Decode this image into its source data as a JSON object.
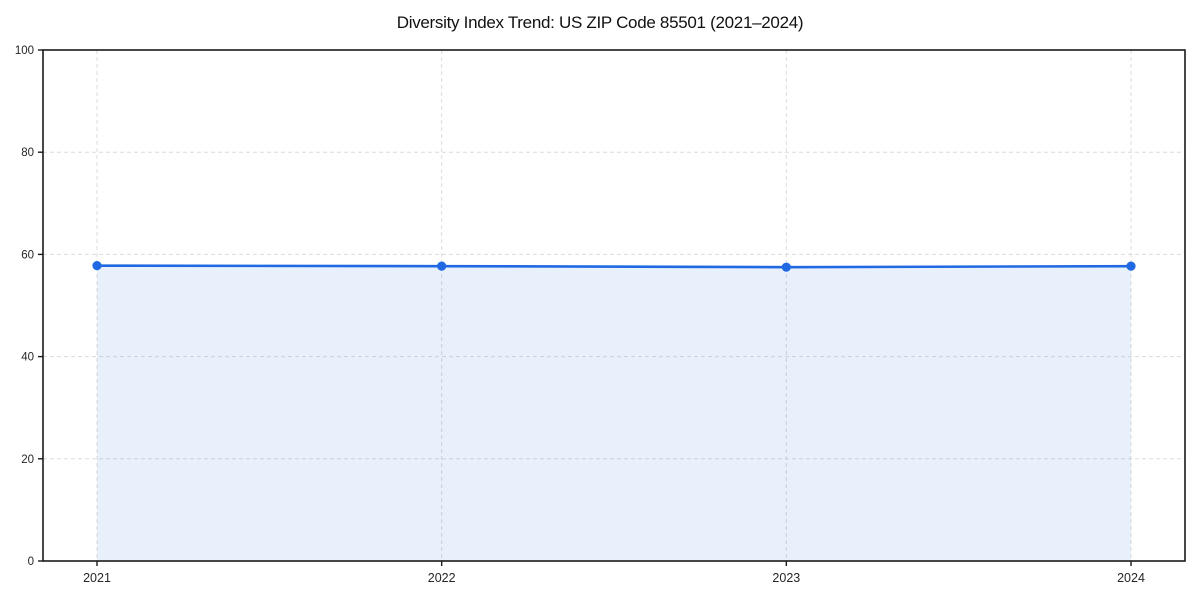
{
  "chart_data": {
    "type": "line",
    "title": "Diversity Index Trend: US ZIP Code 85501 (2021–2024)",
    "x": [
      2021,
      2022,
      2023,
      2024
    ],
    "series": [
      {
        "name": "Diversity Index",
        "values": [
          57.8,
          57.7,
          57.5,
          57.7
        ]
      }
    ],
    "xlabel": "",
    "ylabel": "",
    "ylim": [
      0,
      100
    ],
    "yticks": [
      0,
      20,
      40,
      60,
      80,
      100
    ],
    "grid": "dashed",
    "legend_position": "none",
    "area_fill": true,
    "marker": "circle",
    "colors": {
      "line": "#2169e2",
      "fill_opacity": 0.1,
      "grid": "#dcdcdc",
      "spine": "#1a1a1a",
      "tick_label": "#262626",
      "background": "#ffffff"
    }
  }
}
